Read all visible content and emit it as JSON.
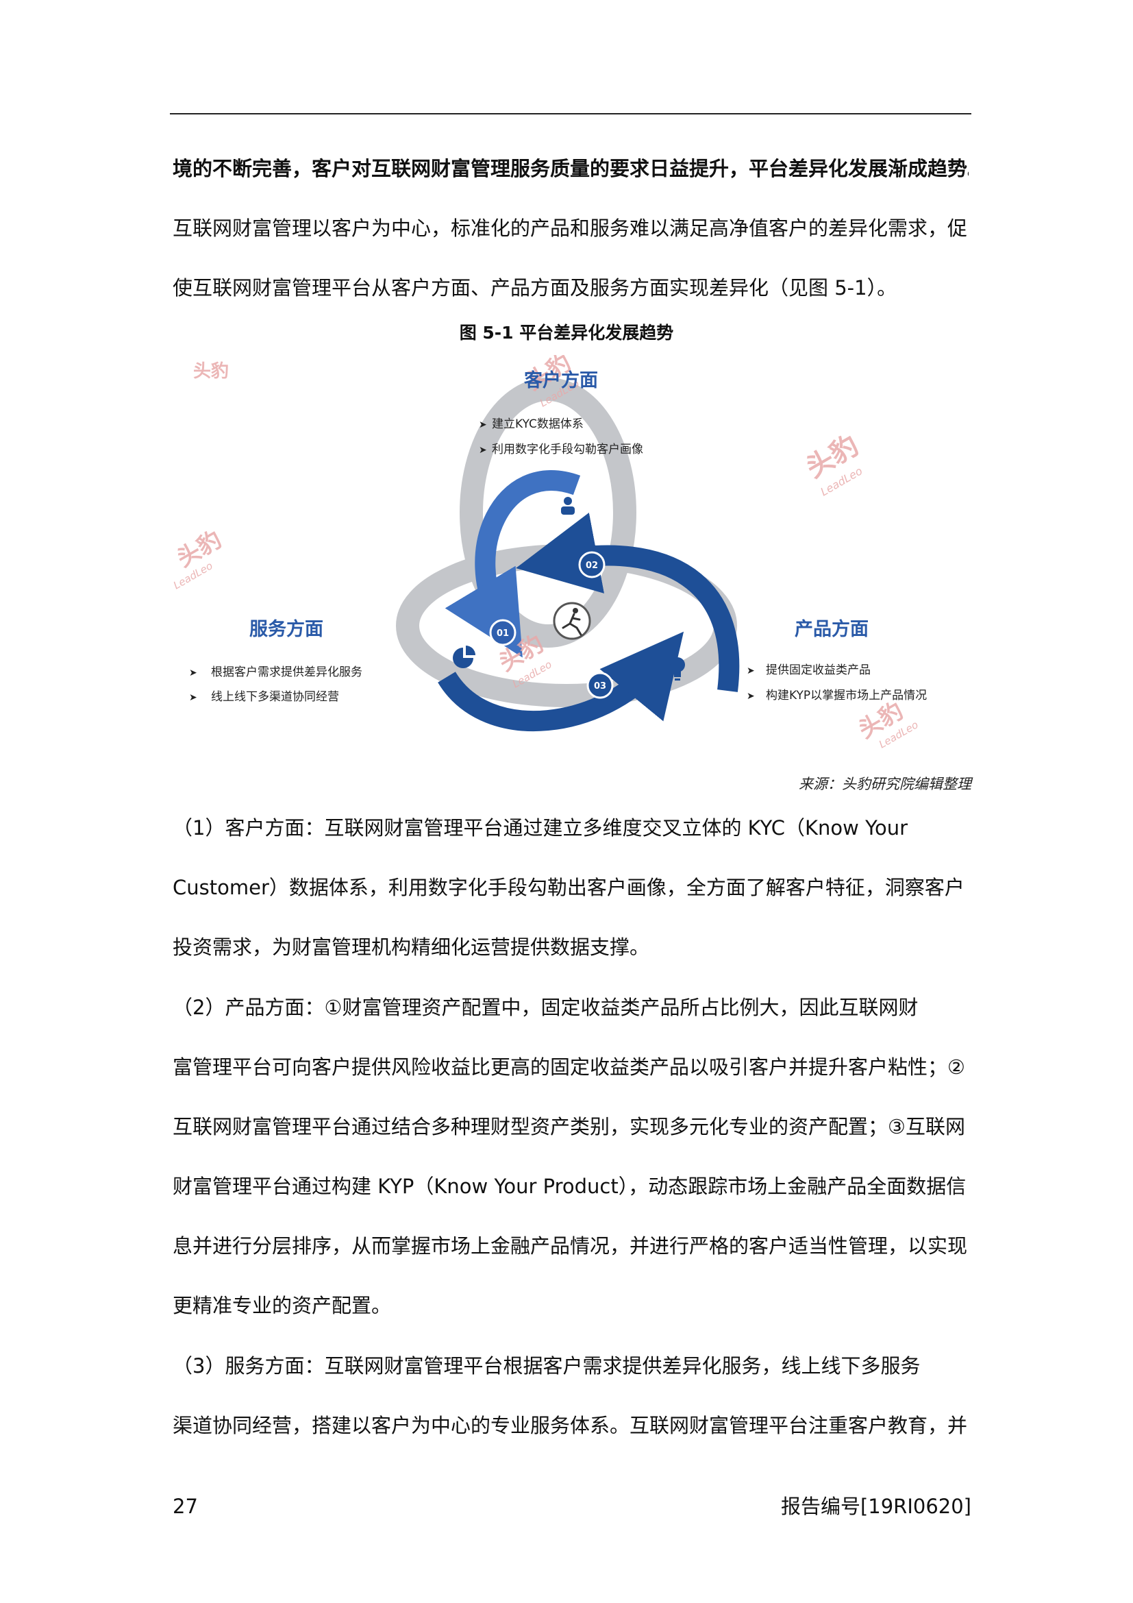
{
  "body": {
    "line1": "境的不断完善，客户对互联网财富管理服务质量的要求日益提升，平台差异化发展渐成趋势。",
    "line2": "互联网财富管理以客户为中心，标准化的产品和服务难以满足高净值客户的差异化需求，促",
    "line3": "使互联网财富管理平台从客户方面、产品方面及服务方面实现差异化（见图 5-1）。"
  },
  "figure": {
    "title": "图 5-1  平台差异化发展趋势",
    "customer": {
      "heading": "客户方面",
      "bullets": [
        "建立KYC数据体系",
        "利用数字化手段勾勒客户画像"
      ]
    },
    "product": {
      "heading": "产品方面",
      "bullets": [
        "提供固定收益类产品",
        "构建KYP以掌握市场上产品情况"
      ]
    },
    "service": {
      "heading": "服务方面",
      "bullets": [
        "根据客户需求提供差异化服务",
        "线上线下多渠道协同经营"
      ]
    },
    "steps": [
      "01",
      "02",
      "03"
    ],
    "watermark": {
      "cn": "头豹",
      "en": "LeadLeo"
    },
    "icons": [
      "user-icon",
      "lightbulb-icon",
      "pie-chart-icon",
      "running-person-icon"
    ],
    "colors": {
      "heading": "#2a5aa8",
      "arrow_dark": "#1e4f97",
      "arrow_light": "#3f72c2",
      "ring_grey": "#c4c6ca",
      "watermark": "#e8a9a9"
    },
    "source": "来源：头豹研究院编辑整理"
  },
  "sections": {
    "p1_l1": "（1）客户方面：互联网财富管理平台通过建立多维度交叉立体的 KYC（Know Your",
    "p1_l2": "Customer）数据体系，利用数字化手段勾勒出客户画像，全方面了解客户特征，洞察客户",
    "p1_l3": "投资需求，为财富管理机构精细化运营提供数据支撑。",
    "p2_l1": "（2）产品方面：①财富管理资产配置中，固定收益类产品所占比例大，因此互联网财",
    "p2_l2": "富管理平台可向客户提供风险收益比更高的固定收益类产品以吸引客户并提升客户粘性；②",
    "p2_l3": "互联网财富管理平台通过结合多种理财型资产类别，实现多元化专业的资产配置；③互联网",
    "p2_l4": "财富管理平台通过构建 KYP（Know Your Product），动态跟踪市场上金融产品全面数据信",
    "p2_l5": "息并进行分层排序，从而掌握市场上金融产品情况，并进行严格的客户适当性管理，以实现",
    "p2_l6": "更精准专业的资产配置。",
    "p3_l1": "（3）服务方面：互联网财富管理平台根据客户需求提供差异化服务，线上线下多服务",
    "p3_l2": "渠道协同经营，搭建以客户为中心的专业服务体系。互联网财富管理平台注重客户教育，并"
  },
  "footer": {
    "page_number": "27",
    "report_number": "报告编号[19RI0620]"
  }
}
